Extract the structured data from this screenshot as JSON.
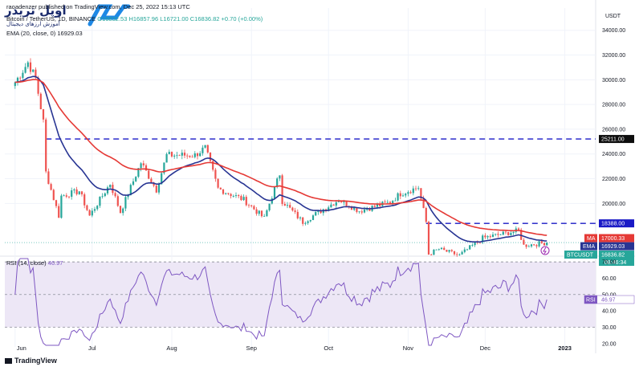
{
  "watermark": {
    "logo_text": "اوپل تریدر",
    "logo_subtext": "آموزش ارزهای دیجیتال"
  },
  "header": {
    "line1_start": "raoadenzer published on TradingView.com, Dec 25, 2022 15:13 UTC",
    "line1_symbol": "Bitcoin / TetherUS, 1D, BINANCE",
    "line1_ohlc": "O16832.53  H16857.96  L16721.00  C16836.82  +0.70 (+0.00%)",
    "line2": "EMA (20, close, 0)  16929.03"
  },
  "footer": {
    "brand": "TradingView"
  },
  "colors": {
    "up": "#26a69a",
    "down": "#ef5350",
    "ema20": "#283593",
    "ema50": "#e53935",
    "dashed": "#1a1ac6",
    "rsi": "#7e57c2",
    "rsi_band": "#ede7f6",
    "grid": "#f0f3fa"
  },
  "chart_data": [
    {
      "type": "candlestick",
      "title": "Bitcoin / TetherUS, 1D, BINANCE",
      "currency": "USDT",
      "x_tick_labels": [
        "Jun",
        "Jul",
        "Aug",
        "Sep",
        "Oct",
        "Nov",
        "Dec",
        "2023"
      ],
      "y_tick_labels": [
        "20000.00",
        "22000.00",
        "24000.00",
        "26000.00",
        "28000.00",
        "30000.00",
        "32000.00",
        "34000.00"
      ],
      "ylim": [
        15800,
        35800
      ],
      "series": [
        {
          "name": "BTCUSDT",
          "ohlc_daily_approx": {
            "start": "2022-06-01",
            "end": "2022-12-25",
            "close_keypoints": [
              [
                "2022-06-01",
                29800
              ],
              [
                "2022-06-06",
                31400
              ],
              [
                "2022-06-09",
                30100
              ],
              [
                "2022-06-12",
                26600
              ],
              [
                "2022-06-13",
                22500
              ],
              [
                "2022-06-18",
                19000
              ],
              [
                "2022-06-19",
                20600
              ],
              [
                "2022-06-26",
                21000
              ],
              [
                "2022-06-30",
                19000
              ],
              [
                "2022-07-08",
                21600
              ],
              [
                "2022-07-12",
                19300
              ],
              [
                "2022-07-20",
                23300
              ],
              [
                "2022-07-26",
                21100
              ],
              [
                "2022-07-30",
                23900
              ],
              [
                "2022-08-10",
                23900
              ],
              [
                "2022-08-14",
                24500
              ],
              [
                "2022-08-19",
                21200
              ],
              [
                "2022-08-29",
                20300
              ],
              [
                "2022-09-06",
                18800
              ],
              [
                "2022-09-12",
                22400
              ],
              [
                "2022-09-13",
                20200
              ],
              [
                "2022-09-21",
                18500
              ],
              [
                "2022-10-05",
                20300
              ],
              [
                "2022-10-13",
                19400
              ],
              [
                "2022-10-25",
                20100
              ],
              [
                "2022-10-29",
                20800
              ],
              [
                "2022-11-05",
                21300
              ],
              [
                "2022-11-08",
                18500
              ],
              [
                "2022-11-09",
                15900
              ],
              [
                "2022-11-13",
                16300
              ],
              [
                "2022-11-21",
                15800
              ],
              [
                "2022-11-30",
                17200
              ],
              [
                "2022-12-14",
                17800
              ],
              [
                "2022-12-16",
                16600
              ],
              [
                "2022-12-25",
                16836.82
              ]
            ]
          }
        },
        {
          "name": "EMA 20",
          "last": 16929.03
        },
        {
          "name": "MA",
          "last": 17000.33
        }
      ],
      "horizontal_levels": [
        25211.0,
        18388.0
      ],
      "price_labels": [
        {
          "text": "25211.00",
          "value": 25211.0,
          "color": "#0d0d0d"
        },
        {
          "text": "18388.00",
          "value": 18388.0,
          "color": "#1a1ac6"
        },
        {
          "tag": "MA",
          "text": "17000.33",
          "value": 17000.33,
          "color": "#e53935"
        },
        {
          "tag": "EMA",
          "text": "16929.03",
          "value": 16929.03,
          "color": "#283593"
        },
        {
          "tag": "BTCUSDT",
          "text": "16836.82",
          "subtext": "08:46:34",
          "value": 16836.82,
          "color": "#26a69a"
        }
      ]
    },
    {
      "type": "line",
      "title": "RSI (14, close)",
      "last_text": "46.97",
      "y_tick_labels": [
        "20.00",
        "30.00",
        "40.00",
        "50.00",
        "60.00",
        "70.00"
      ],
      "ylim": [
        18,
        73
      ],
      "bands": [
        30,
        70
      ],
      "midline": 50,
      "series": [
        {
          "name": "RSI",
          "last": 46.97
        }
      ]
    }
  ]
}
